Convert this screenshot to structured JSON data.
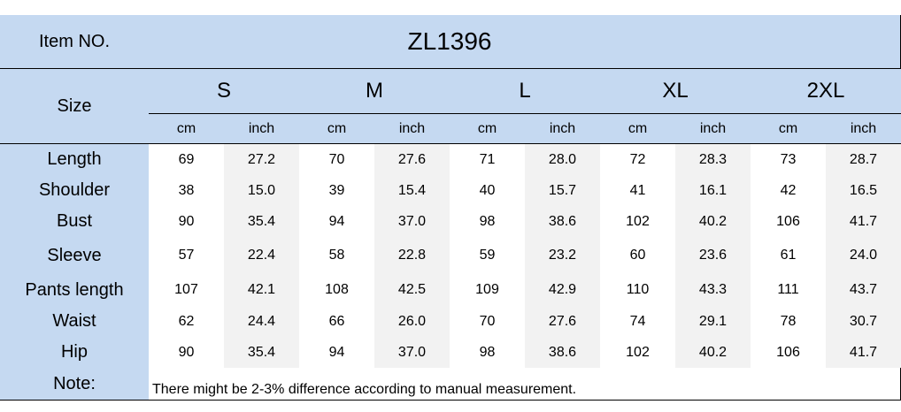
{
  "table": {
    "item_label": "Item NO.",
    "item_no": "ZL1396",
    "size_label": "Size",
    "sizes": [
      "S",
      "M",
      "L",
      "XL",
      "2XL"
    ],
    "units": [
      "cm",
      "inch",
      "cm",
      "inch",
      "cm",
      "inch",
      "cm",
      "inch",
      "cm",
      "inch"
    ],
    "rows": [
      {
        "label": "Length",
        "values": [
          "69",
          "27.2",
          "70",
          "27.6",
          "71",
          "28.0",
          "72",
          "28.3",
          "73",
          "28.7"
        ]
      },
      {
        "label": "Shoulder",
        "values": [
          "38",
          "15.0",
          "39",
          "15.4",
          "40",
          "15.7",
          "41",
          "16.1",
          "42",
          "16.5"
        ]
      },
      {
        "label": "Bust",
        "values": [
          "90",
          "35.4",
          "94",
          "37.0",
          "98",
          "38.6",
          "102",
          "40.2",
          "106",
          "41.7"
        ]
      },
      {
        "label": "Sleeve",
        "values": [
          "57",
          "22.4",
          "58",
          "22.8",
          "59",
          "23.2",
          "60",
          "23.6",
          "61",
          "24.0"
        ]
      },
      {
        "label": "Pants length",
        "values": [
          "107",
          "42.1",
          "108",
          "42.5",
          "109",
          "42.9",
          "110",
          "43.3",
          "111",
          "43.7"
        ]
      },
      {
        "label": "Waist",
        "values": [
          "62",
          "24.4",
          "66",
          "26.0",
          "70",
          "27.6",
          "74",
          "29.1",
          "78",
          "30.7"
        ]
      },
      {
        "label": "Hip",
        "values": [
          "90",
          "35.4",
          "94",
          "37.0",
          "98",
          "38.6",
          "102",
          "40.2",
          "106",
          "41.7"
        ]
      }
    ],
    "note_label": "Note:",
    "note": "There might be 2-3% difference according to manual measurement."
  }
}
